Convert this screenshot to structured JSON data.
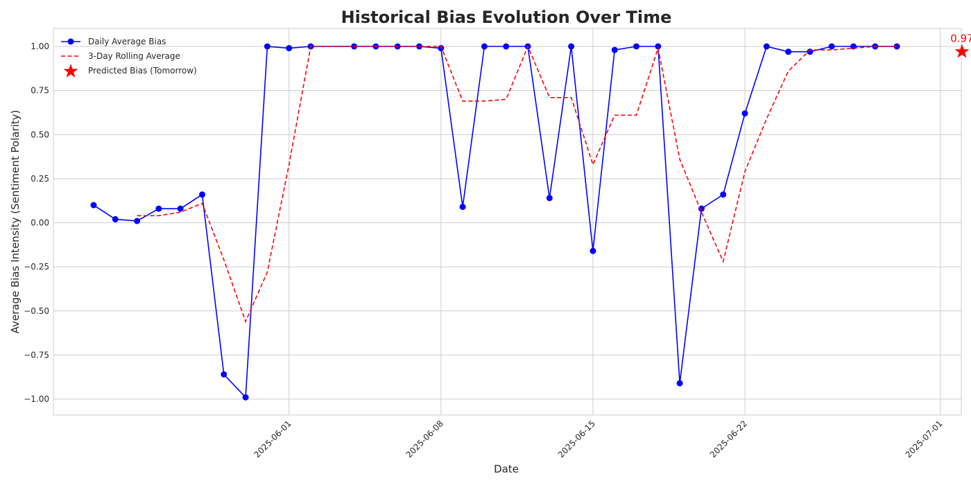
{
  "chart_data": {
    "type": "line",
    "title": "Historical Bias Evolution Over Time",
    "xlabel": "Date",
    "ylabel": "Average Bias Intensity (Sentiment Polarity)",
    "xlim": [
      "2025-05-23",
      "2025-07-04"
    ],
    "ylim": [
      -1.09,
      1.1
    ],
    "grid": true,
    "legend_position": "top-left",
    "x_ticks": [
      "2025-06-01",
      "2025-06-08",
      "2025-06-15",
      "2025-06-22",
      "2025-07-01"
    ],
    "y_ticks": [
      {
        "value": 1.0,
        "label": "1.00"
      },
      {
        "value": 0.75,
        "label": "0.75"
      },
      {
        "value": 0.5,
        "label": "0.50"
      },
      {
        "value": 0.25,
        "label": "0.25"
      },
      {
        "value": 0.0,
        "label": "0.00"
      },
      {
        "value": -0.25,
        "label": "−0.25"
      },
      {
        "value": -0.5,
        "label": "−0.50"
      },
      {
        "value": -0.75,
        "label": "−0.75"
      },
      {
        "value": -1.0,
        "label": "−1.00"
      }
    ],
    "series": [
      {
        "name": "Daily Average Bias",
        "style": "solid-line-with-markers",
        "color": "#0000ff",
        "points": [
          {
            "x": "2025-05-23",
            "y": 0.1
          },
          {
            "x": "2025-05-24",
            "y": 0.02
          },
          {
            "x": "2025-05-25",
            "y": 0.01
          },
          {
            "x": "2025-05-26",
            "y": 0.08
          },
          {
            "x": "2025-05-27",
            "y": 0.08
          },
          {
            "x": "2025-05-28",
            "y": 0.16
          },
          {
            "x": "2025-05-29",
            "y": -0.86
          },
          {
            "x": "2025-05-30",
            "y": -0.99
          },
          {
            "x": "2025-05-31",
            "y": 1.0
          },
          {
            "x": "2025-06-01",
            "y": 0.99
          },
          {
            "x": "2025-06-02",
            "y": 1.0
          },
          {
            "x": "2025-06-04",
            "y": 1.0
          },
          {
            "x": "2025-06-05",
            "y": 1.0
          },
          {
            "x": "2025-06-06",
            "y": 1.0
          },
          {
            "x": "2025-06-07",
            "y": 1.0
          },
          {
            "x": "2025-06-08",
            "y": 0.99
          },
          {
            "x": "2025-06-09",
            "y": 0.09
          },
          {
            "x": "2025-06-10",
            "y": 1.0
          },
          {
            "x": "2025-06-11",
            "y": 1.0
          },
          {
            "x": "2025-06-12",
            "y": 1.0
          },
          {
            "x": "2025-06-13",
            "y": 0.14
          },
          {
            "x": "2025-06-14",
            "y": 1.0
          },
          {
            "x": "2025-06-15",
            "y": -0.16
          },
          {
            "x": "2025-06-16",
            "y": 0.98
          },
          {
            "x": "2025-06-17",
            "y": 1.0
          },
          {
            "x": "2025-06-18",
            "y": 1.0
          },
          {
            "x": "2025-06-19",
            "y": -0.91
          },
          {
            "x": "2025-06-20",
            "y": 0.08
          },
          {
            "x": "2025-06-21",
            "y": 0.16
          },
          {
            "x": "2025-06-22",
            "y": 0.62
          },
          {
            "x": "2025-06-23",
            "y": 1.0
          },
          {
            "x": "2025-06-24",
            "y": 0.97
          },
          {
            "x": "2025-06-25",
            "y": 0.97
          },
          {
            "x": "2025-06-26",
            "y": 1.0
          },
          {
            "x": "2025-06-27",
            "y": 1.0
          },
          {
            "x": "2025-06-28",
            "y": 1.0
          },
          {
            "x": "2025-06-29",
            "y": 1.0
          }
        ]
      },
      {
        "name": "3-Day Rolling Average",
        "style": "dashed-line",
        "color": "#ff0000",
        "points": [
          {
            "x": "2025-05-25",
            "y": 0.04
          },
          {
            "x": "2025-05-26",
            "y": 0.04
          },
          {
            "x": "2025-05-27",
            "y": 0.06
          },
          {
            "x": "2025-05-28",
            "y": 0.11
          },
          {
            "x": "2025-05-29",
            "y": -0.21
          },
          {
            "x": "2025-05-30",
            "y": -0.56
          },
          {
            "x": "2025-05-31",
            "y": -0.28
          },
          {
            "x": "2025-06-01",
            "y": 0.33
          },
          {
            "x": "2025-06-02",
            "y": 1.0
          },
          {
            "x": "2025-06-04",
            "y": 1.0
          },
          {
            "x": "2025-06-05",
            "y": 1.0
          },
          {
            "x": "2025-06-06",
            "y": 1.0
          },
          {
            "x": "2025-06-07",
            "y": 1.0
          },
          {
            "x": "2025-06-08",
            "y": 1.0
          },
          {
            "x": "2025-06-09",
            "y": 0.69
          },
          {
            "x": "2025-06-10",
            "y": 0.69
          },
          {
            "x": "2025-06-11",
            "y": 0.7
          },
          {
            "x": "2025-06-12",
            "y": 1.0
          },
          {
            "x": "2025-06-13",
            "y": 0.71
          },
          {
            "x": "2025-06-14",
            "y": 0.71
          },
          {
            "x": "2025-06-15",
            "y": 0.33
          },
          {
            "x": "2025-06-16",
            "y": 0.61
          },
          {
            "x": "2025-06-17",
            "y": 0.61
          },
          {
            "x": "2025-06-18",
            "y": 0.99
          },
          {
            "x": "2025-06-19",
            "y": 0.36
          },
          {
            "x": "2025-06-20",
            "y": 0.06
          },
          {
            "x": "2025-06-21",
            "y": -0.22
          },
          {
            "x": "2025-06-22",
            "y": 0.29
          },
          {
            "x": "2025-06-23",
            "y": 0.59
          },
          {
            "x": "2025-06-24",
            "y": 0.86
          },
          {
            "x": "2025-06-25",
            "y": 0.98
          },
          {
            "x": "2025-06-26",
            "y": 0.98
          },
          {
            "x": "2025-06-27",
            "y": 0.99
          },
          {
            "x": "2025-06-28",
            "y": 1.0
          },
          {
            "x": "2025-06-29",
            "y": 1.0
          }
        ]
      },
      {
        "name": "Predicted Bias (Tomorrow)",
        "style": "star-marker",
        "color": "#ff0000",
        "points": [
          {
            "x": "2025-07-02",
            "y": 0.97
          }
        ]
      }
    ],
    "annotations": [
      {
        "text": "0.97",
        "x": "2025-07-02",
        "y": 0.97,
        "color": "#ff0000"
      }
    ]
  }
}
